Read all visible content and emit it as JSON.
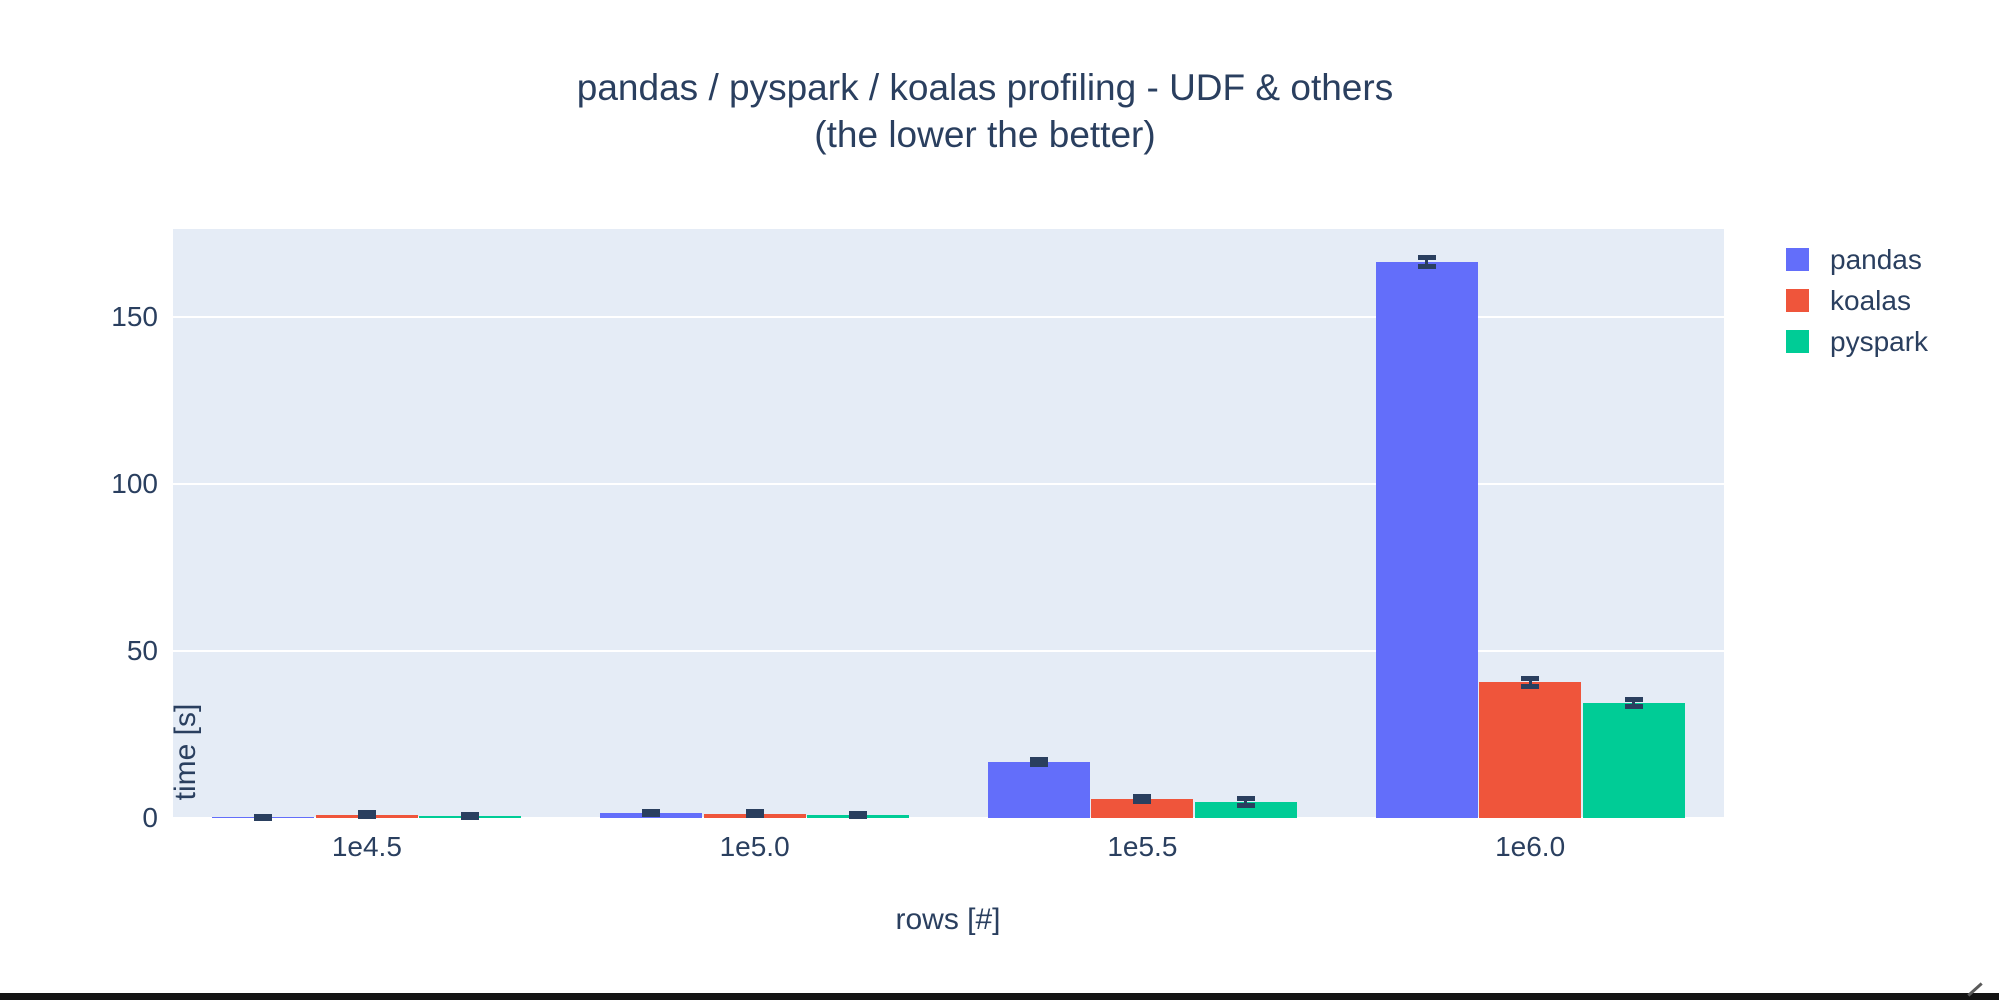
{
  "figure": {
    "title_line1": "pandas / pyspark / koalas profiling - UDF & others",
    "title_line2": "(the lower the better)"
  },
  "chart_data": {
    "type": "bar",
    "title": "pandas / pyspark / koalas profiling - UDF & others (the lower the better)",
    "xlabel": "rows [#]",
    "ylabel": "time [s]",
    "categories": [
      "1e4.5",
      "1e5.0",
      "1e5.5",
      "1e6.0"
    ],
    "yticks": [
      0,
      50,
      100,
      150
    ],
    "ylim": [
      0,
      176.4
    ],
    "grid": true,
    "legend_position": "top-right",
    "series": [
      {
        "name": "pandas",
        "color": "#636EFA",
        "values": [
          0.2,
          1.4,
          16.8,
          166.5
        ],
        "error_y": [
          0.3,
          0.5,
          0.7,
          1.3
        ]
      },
      {
        "name": "koalas",
        "color": "#EF553B",
        "values": [
          1.0,
          1.3,
          5.7,
          40.7
        ],
        "error_y": [
          0.5,
          0.5,
          0.8,
          1.2
        ]
      },
      {
        "name": "pyspark",
        "color": "#00CC96",
        "values": [
          0.6,
          0.9,
          4.8,
          34.4
        ],
        "error_y": [
          0.4,
          0.5,
          1.0,
          1.0
        ]
      }
    ],
    "colors": {
      "plot_background": "#e5ecf6",
      "gridline": "#ffffff",
      "text": "#2a3f5f",
      "error_bar": "#2a3f5f"
    }
  },
  "legend": {
    "items": [
      {
        "label": "pandas",
        "color": "#636EFA"
      },
      {
        "label": "koalas",
        "color": "#EF553B"
      },
      {
        "label": "pyspark",
        "color": "#00CC96"
      }
    ]
  }
}
